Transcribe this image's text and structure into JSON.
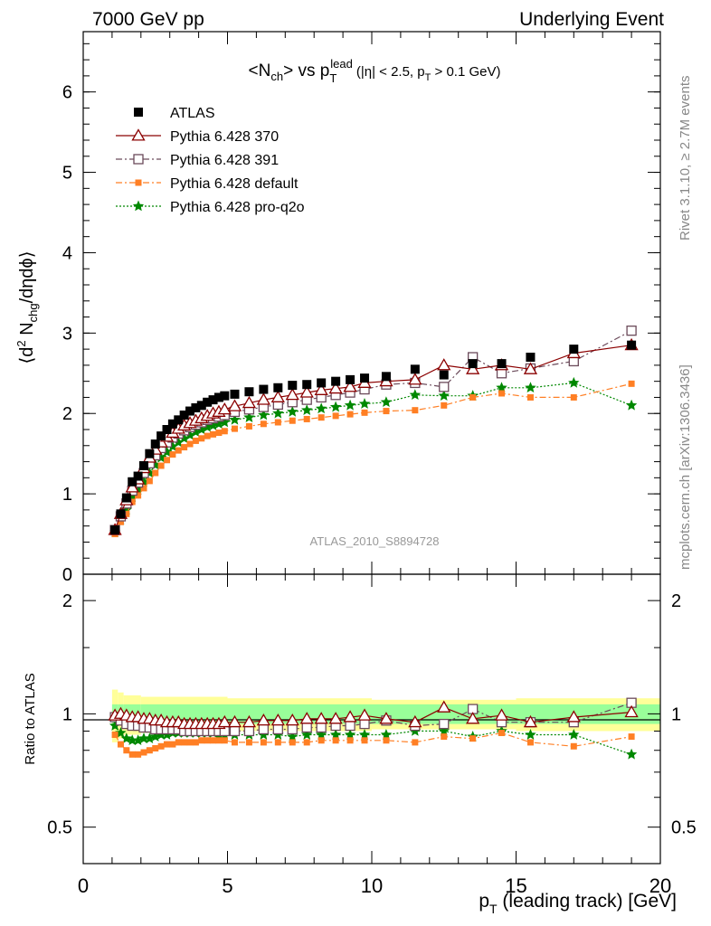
{
  "header": {
    "left": "7000 GeV pp",
    "right": "Underlying Event"
  },
  "side_label_top": "Rivet 3.1.10, ≥ 2.7M events",
  "side_label_bottom": "mcplots.cern.ch [arXiv:1306.3436]",
  "watermark": "ATLAS_2010_S8894728",
  "colors": {
    "atlas": "#000000",
    "p370": "#8b0000",
    "p391": "#6b4a5a",
    "pdefault": "#ff7f24",
    "pq2o": "#008800",
    "band_inner": "#99ff99",
    "band_outer": "#ffff99"
  },
  "chart_data": [
    {
      "type": "scatter",
      "title_parts": {
        "main": "<N",
        "ch": "ch",
        "vs": "> vs p",
        "sub": "T",
        "sup": "lead",
        "cuts": "(|η| < 2.5, p",
        "cuts_sub": "T",
        "cuts_end": " > 0.1 GeV)"
      },
      "ylabel_parts": {
        "a": "⟨d",
        "a_sup": "2",
        "b": " N",
        "b_sub": "chg",
        "c": "/dηdϕ⟩"
      },
      "ylim": [
        0,
        6.75
      ],
      "y_ticks": [
        "0",
        "1",
        "2",
        "3",
        "4",
        "5",
        "6"
      ],
      "x": [
        1.1,
        1.3,
        1.5,
        1.7,
        1.9,
        2.1,
        2.3,
        2.5,
        2.7,
        2.9,
        3.1,
        3.3,
        3.5,
        3.7,
        3.9,
        4.1,
        4.3,
        4.5,
        4.7,
        4.9,
        5.25,
        5.75,
        6.25,
        6.75,
        7.25,
        7.75,
        8.25,
        8.75,
        9.25,
        9.75,
        10.5,
        11.5,
        12.5,
        13.5,
        14.5,
        15.5,
        17.0,
        19.0
      ],
      "series": [
        {
          "name": "ATLAS",
          "style": "atlas",
          "values": [
            0.55,
            0.75,
            0.95,
            1.15,
            1.22,
            1.35,
            1.5,
            1.62,
            1.72,
            1.8,
            1.87,
            1.92,
            1.98,
            2.03,
            2.07,
            2.1,
            2.14,
            2.17,
            2.2,
            2.22,
            2.24,
            2.27,
            2.3,
            2.32,
            2.35,
            2.36,
            2.38,
            2.4,
            2.42,
            2.44,
            2.46,
            2.55,
            2.48,
            2.62,
            2.62,
            2.7,
            2.8,
            2.85
          ]
        },
        {
          "name": "Pythia 6.428 370",
          "style": "p370",
          "values": [
            0.55,
            0.75,
            0.92,
            1.08,
            1.18,
            1.32,
            1.45,
            1.55,
            1.64,
            1.71,
            1.76,
            1.81,
            1.85,
            1.88,
            1.91,
            1.94,
            1.97,
            2.0,
            2.02,
            2.05,
            2.09,
            2.13,
            2.17,
            2.2,
            2.23,
            2.26,
            2.29,
            2.31,
            2.33,
            2.38,
            2.4,
            2.42,
            2.6,
            2.55,
            2.6,
            2.55,
            2.75,
            2.85
          ]
        },
        {
          "name": "Pythia 6.428 391",
          "style": "p391",
          "values": [
            0.55,
            0.72,
            0.88,
            1.04,
            1.14,
            1.26,
            1.38,
            1.48,
            1.57,
            1.64,
            1.7,
            1.75,
            1.79,
            1.83,
            1.86,
            1.89,
            1.92,
            1.94,
            1.96,
            1.98,
            2.02,
            2.05,
            2.08,
            2.11,
            2.14,
            2.17,
            2.2,
            2.23,
            2.26,
            2.3,
            2.36,
            2.38,
            2.33,
            2.7,
            2.5,
            2.56,
            2.65,
            3.03
          ]
        },
        {
          "name": "Pythia 6.428 default",
          "style": "pdefault",
          "values": [
            0.5,
            0.65,
            0.75,
            0.9,
            0.98,
            1.07,
            1.16,
            1.26,
            1.35,
            1.42,
            1.49,
            1.54,
            1.58,
            1.62,
            1.66,
            1.69,
            1.72,
            1.74,
            1.76,
            1.78,
            1.81,
            1.84,
            1.87,
            1.89,
            1.91,
            1.93,
            1.95,
            1.97,
            1.99,
            2.01,
            2.03,
            2.04,
            2.1,
            2.2,
            2.25,
            2.2,
            2.2,
            2.37
          ]
        },
        {
          "name": "Pythia 6.428 pro-q2o",
          "style": "pq2o",
          "values": [
            0.52,
            0.68,
            0.8,
            0.96,
            1.05,
            1.15,
            1.26,
            1.36,
            1.45,
            1.52,
            1.59,
            1.64,
            1.69,
            1.73,
            1.77,
            1.8,
            1.83,
            1.85,
            1.87,
            1.89,
            1.92,
            1.95,
            1.98,
            2.0,
            2.02,
            2.04,
            2.06,
            2.08,
            2.1,
            2.12,
            2.14,
            2.23,
            2.22,
            2.22,
            2.32,
            2.32,
            2.38,
            2.1
          ]
        }
      ]
    },
    {
      "type": "scatter",
      "ylabel": "Ratio to ATLAS",
      "ylim": [
        0.4,
        2.35
      ],
      "y_ticks": [
        "0.5",
        "1",
        "2"
      ],
      "xlabel_parts": {
        "p": "p",
        "sub": "T",
        "rest": " (leading track) [GeV]"
      },
      "xlim": [
        0,
        20
      ],
      "x_ticks": [
        "0",
        "5",
        "10",
        "15",
        "20"
      ],
      "series": [
        {
          "name": "Pythia 6.428 370",
          "style": "p370",
          "values": [
            0.99,
            1.0,
            0.99,
            0.98,
            0.98,
            0.97,
            0.97,
            0.96,
            0.96,
            0.95,
            0.95,
            0.95,
            0.94,
            0.94,
            0.94,
            0.94,
            0.94,
            0.94,
            0.94,
            0.95,
            0.95,
            0.95,
            0.96,
            0.96,
            0.96,
            0.97,
            0.97,
            0.97,
            0.98,
            0.99,
            0.97,
            0.95,
            1.04,
            0.97,
            0.99,
            0.95,
            0.98,
            1.01
          ]
        },
        {
          "name": "Pythia 6.428 391",
          "style": "p391",
          "values": [
            0.98,
            0.96,
            0.94,
            0.93,
            0.93,
            0.92,
            0.92,
            0.91,
            0.91,
            0.91,
            0.91,
            0.91,
            0.9,
            0.9,
            0.9,
            0.9,
            0.9,
            0.9,
            0.9,
            0.9,
            0.9,
            0.9,
            0.91,
            0.91,
            0.91,
            0.92,
            0.92,
            0.93,
            0.93,
            0.94,
            0.96,
            0.93,
            0.94,
            1.03,
            0.95,
            0.95,
            0.95,
            1.07
          ]
        },
        {
          "name": "Pythia 6.428 default",
          "style": "pdefault",
          "values": [
            0.88,
            0.83,
            0.8,
            0.78,
            0.78,
            0.79,
            0.8,
            0.81,
            0.82,
            0.83,
            0.83,
            0.84,
            0.84,
            0.84,
            0.84,
            0.85,
            0.85,
            0.85,
            0.85,
            0.85,
            0.84,
            0.84,
            0.84,
            0.84,
            0.84,
            0.84,
            0.85,
            0.85,
            0.85,
            0.85,
            0.85,
            0.84,
            0.87,
            0.86,
            0.89,
            0.84,
            0.82,
            0.87
          ]
        },
        {
          "name": "Pythia 6.428 pro-q2o",
          "style": "pq2o",
          "values": [
            0.93,
            0.89,
            0.86,
            0.85,
            0.85,
            0.86,
            0.86,
            0.87,
            0.88,
            0.88,
            0.89,
            0.89,
            0.89,
            0.89,
            0.89,
            0.89,
            0.89,
            0.89,
            0.88,
            0.88,
            0.88,
            0.88,
            0.88,
            0.88,
            0.87,
            0.88,
            0.88,
            0.88,
            0.88,
            0.88,
            0.88,
            0.9,
            0.9,
            0.87,
            0.9,
            0.88,
            0.88,
            0.78
          ]
        }
      ],
      "bands": [
        {
          "x": [
            1.0,
            1.2,
            1.4,
            2.0,
            5.0,
            10.0,
            15.0,
            20.0
          ],
          "outer": [
            0.16,
            0.14,
            0.12,
            0.11,
            0.1,
            0.09,
            0.1,
            0.12
          ],
          "inner": [
            0.06,
            0.06,
            0.06,
            0.06,
            0.06,
            0.06,
            0.06,
            0.08
          ]
        }
      ]
    }
  ]
}
